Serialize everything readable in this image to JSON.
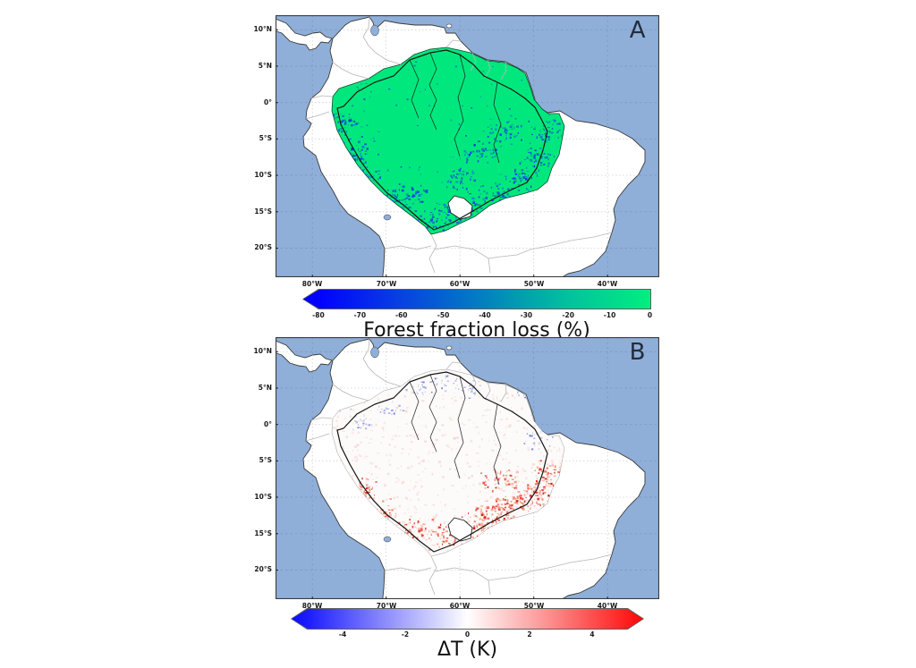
{
  "figure": {
    "background": "#ffffff",
    "panels": [
      {
        "label": "A",
        "lat_ticks": [
          "10°N",
          "5°N",
          "0°",
          "5°S",
          "10°S",
          "15°S",
          "20°S"
        ],
        "lon_ticks": [
          "80°W",
          "70°W",
          "60°W",
          "50°W",
          "40°W"
        ],
        "colorbar": {
          "title": "Forest fraction loss (%)",
          "ticks": [
            "-80",
            "-70",
            "-60",
            "-50",
            "-40",
            "-30",
            "-20",
            "-10",
            "0"
          ],
          "extend": "min",
          "min_color": "#0000ff",
          "max_color": "#00ef7f"
        }
      },
      {
        "label": "B",
        "lat_ticks": [
          "10°N",
          "5°N",
          "0°",
          "5°S",
          "10°S",
          "15°S",
          "20°S"
        ],
        "lon_ticks": [
          "80°W",
          "70°W",
          "60°W",
          "50°W",
          "40°W"
        ],
        "colorbar": {
          "title": "ΔT (K)",
          "ticks": [
            "-4",
            "-2",
            "0",
            "2",
            "4"
          ],
          "extend": "both",
          "min_color": "#0000ff",
          "mid_color": "#ffffff",
          "max_color": "#ff0000"
        }
      }
    ],
    "map_colors": {
      "ocean": "#8fafd9",
      "ocean_grid": "#7e99c7",
      "land": "#ffffff",
      "land_grid": "#cfcfcf",
      "coastline": "#3a3a3a",
      "country_border": "#b6b6b6",
      "basin_outline": "#141414",
      "forest": "#00e87d",
      "forest_loss_blue": "#0033e0",
      "warm_red": "#e02818",
      "cool_blue": "#6a78d8",
      "frame": "#3c3c3c"
    }
  },
  "chart_data": [
    {
      "type": "heatmap",
      "panel": "A",
      "title": "Forest fraction loss (%)",
      "colorbar_ticks": [
        -80,
        -70,
        -60,
        -50,
        -40,
        -30,
        -20,
        -10,
        0
      ],
      "colorbar_range": [
        -80,
        0
      ],
      "colormap": "winter (blue to spring green)",
      "extend": "min",
      "lat_ticks": [
        "10°N",
        "5°N",
        "0°",
        "5°S",
        "10°S",
        "15°S",
        "20°S"
      ],
      "lon_ticks": [
        "80°W",
        "70°W",
        "60°W",
        "50°W",
        "40°W"
      ],
      "description": "Amazon basin map: forest fraction loss near 0% (green) over most of the basin, with losses up to -80% (blue patches) concentrated along the southern and eastern arc of deforestation."
    },
    {
      "type": "heatmap",
      "panel": "B",
      "title": "ΔT (K)",
      "colorbar_ticks": [
        -4,
        -2,
        0,
        2,
        4
      ],
      "colorbar_range": [
        -5,
        5
      ],
      "colormap": "bwr (blue-white-red)",
      "extend": "both",
      "lat_ticks": [
        "10°N",
        "5°N",
        "0°",
        "5°S",
        "10°S",
        "15°S",
        "20°S"
      ],
      "lon_ticks": [
        "80°W",
        "70°W",
        "60°W",
        "50°W",
        "40°W"
      ],
      "description": "Same Amazon region: temperature change ΔT mostly near 0 K (white) with warming up to +4 K (red) over the southern/southeastern deforested arc and scattered slight cooling (blue) in the northwest and east."
    }
  ]
}
